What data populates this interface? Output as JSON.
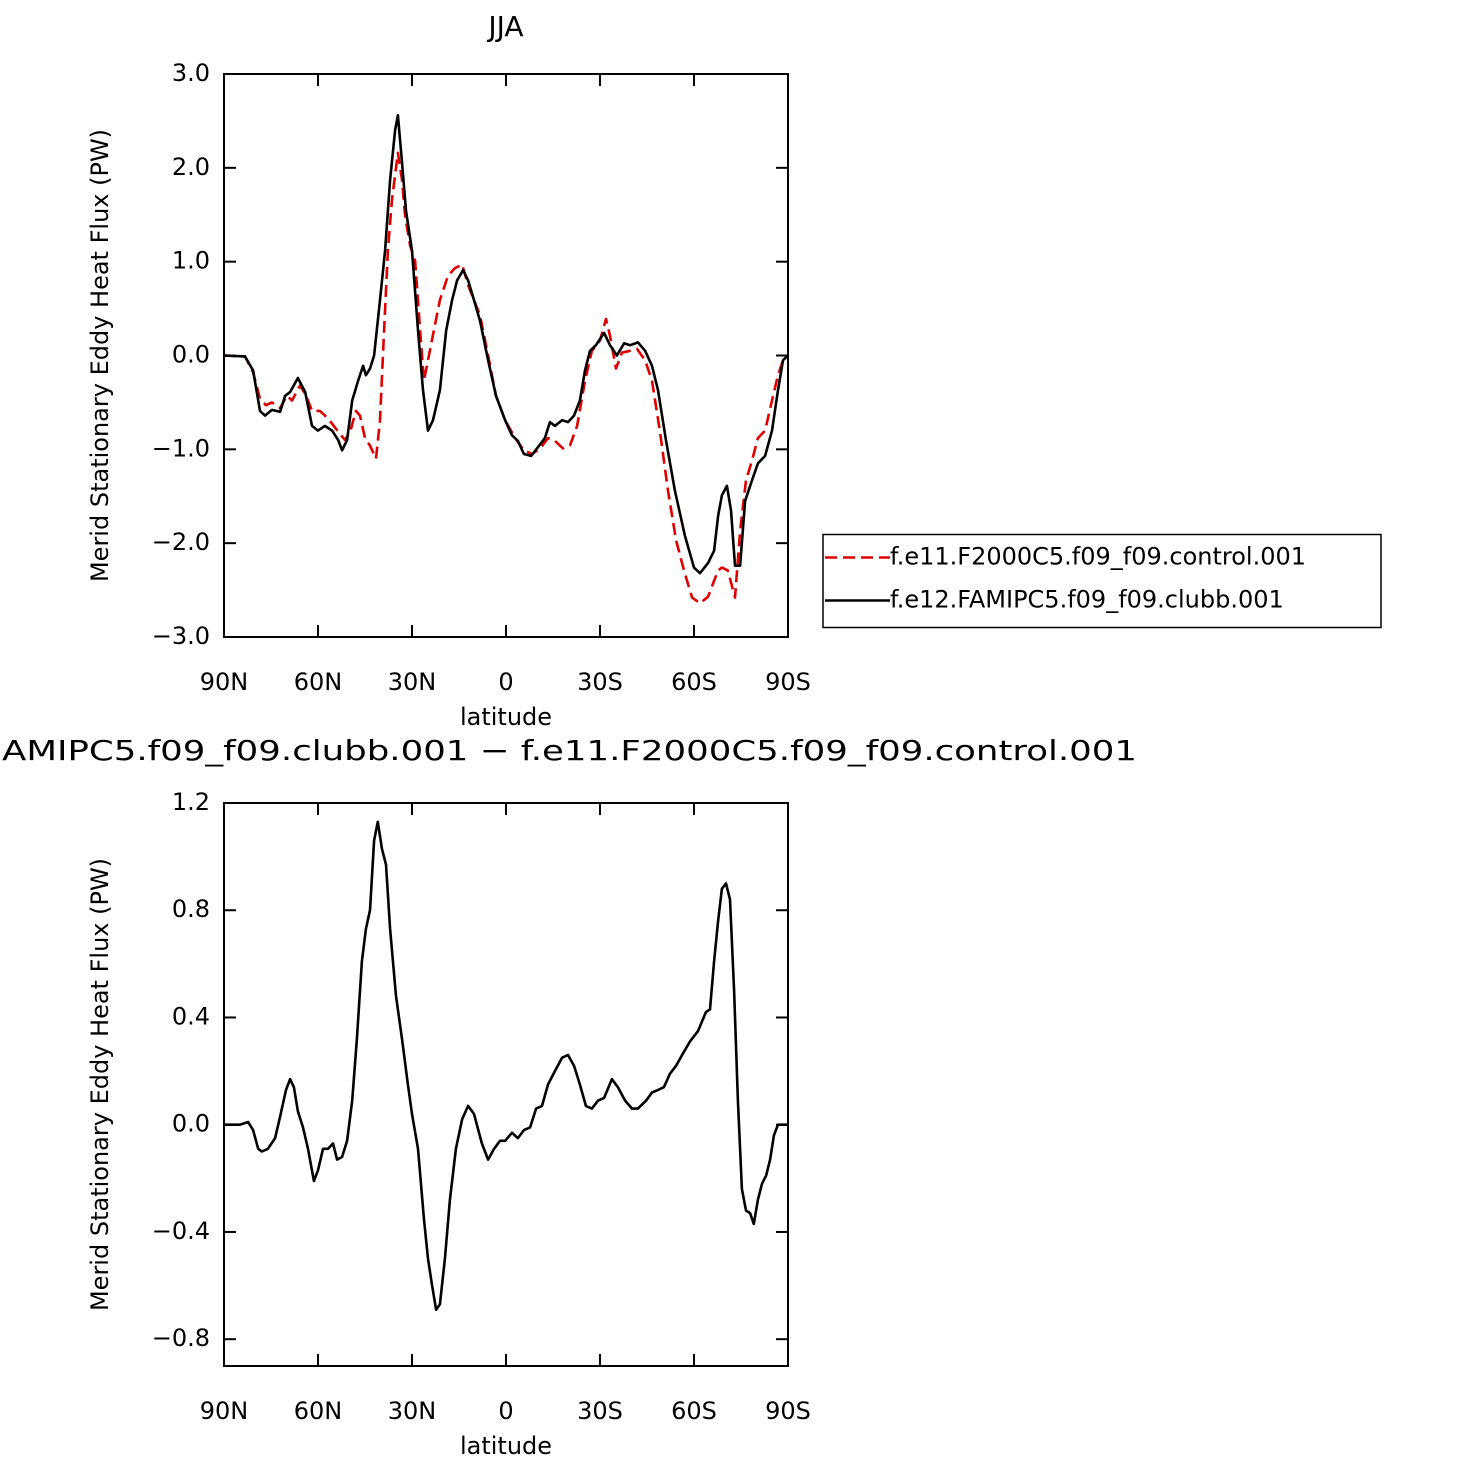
{
  "chart_data": [
    {
      "type": "line",
      "title": "JJA",
      "xlabel": "latitude",
      "ylabel": "Merid Stationary Eddy Heat Flux (PW)",
      "xlim": [
        90,
        -90
      ],
      "ylim": [
        -3,
        3
      ],
      "xticks": [
        {
          "value": 90,
          "label": "90N"
        },
        {
          "value": 60,
          "label": "60N"
        },
        {
          "value": 30,
          "label": "30N"
        },
        0,
        {
          "value": -30,
          "label": "30S"
        },
        {
          "value": -60,
          "label": "60S"
        },
        {
          "value": -90,
          "label": "90S"
        }
      ],
      "yticks": [
        {
          "value": -3,
          "label": "−3.0"
        },
        {
          "value": -2,
          "label": "−2.0"
        },
        {
          "value": -1,
          "label": "−1.0"
        },
        {
          "value": 0,
          "label": "0.0"
        },
        {
          "value": 1,
          "label": "1.0"
        },
        {
          "value": 2,
          "label": "2.0"
        },
        {
          "value": 3,
          "label": "3.0"
        }
      ],
      "legend": "right",
      "series": [
        {
          "name": "f.e11.F2000C5.f09_f09.control.001",
          "color": "#e00000",
          "dash": true,
          "x": [
            90,
            83.3,
            80.7,
            78.5,
            76.6,
            74.7,
            72.1,
            69.9,
            68.3,
            65.7,
            63.8,
            61.9,
            59.4,
            56.8,
            54.3,
            51.4,
            49.8,
            47.9,
            46.6,
            45.0,
            43.4,
            41.5,
            40.2,
            38.9,
            37.7,
            36.4,
            34.5,
            33.2,
            32.2,
            30.6,
            29.0,
            27.4,
            26.2,
            24.9,
            23.0,
            21.1,
            18.5,
            16.3,
            14.0,
            12.1,
            10.2,
            8.3,
            5.7,
            3.2,
            0.3,
            -2.9,
            -5.7,
            -8.3,
            -10.9,
            -13.4,
            -15.6,
            -18.2,
            -20.4,
            -22.7,
            -25.2,
            -27.4,
            -30.0,
            -31.9,
            -33.2,
            -35.1,
            -37.0,
            -39.6,
            -41.8,
            -44.4,
            -46.6,
            -49.1,
            -51.7,
            -54.3,
            -56.8,
            -59.4,
            -61.9,
            -64.5,
            -66.4,
            -67.7,
            -68.9,
            -70.8,
            -73.1,
            -74.7,
            -76.6,
            -78.5,
            -80.4,
            -82.7,
            -84.9,
            -86.8,
            -88.4,
            -90
          ],
          "values": [
            0,
            -0.01,
            -0.18,
            -0.46,
            -0.53,
            -0.5,
            -0.56,
            -0.43,
            -0.48,
            -0.32,
            -0.43,
            -0.59,
            -0.59,
            -0.67,
            -0.78,
            -0.9,
            -0.82,
            -0.59,
            -0.64,
            -0.88,
            -0.96,
            -1.1,
            -0.69,
            0.27,
            1.12,
            1.65,
            2.16,
            1.87,
            1.49,
            1.17,
            1.01,
            0.27,
            -0.27,
            -0.05,
            0.27,
            0.59,
            0.85,
            0.93,
            0.97,
            0.75,
            0.59,
            0.43,
            0,
            -0.43,
            -0.69,
            -0.88,
            -1.01,
            -1.05,
            -0.99,
            -0.88,
            -0.91,
            -0.99,
            -0.96,
            -0.75,
            -0.27,
            0.05,
            0.16,
            0.39,
            0.21,
            -0.14,
            0.03,
            0.05,
            0.07,
            -0.05,
            -0.27,
            -0.8,
            -1.44,
            -1.97,
            -2.29,
            -2.58,
            -2.64,
            -2.57,
            -2.4,
            -2.29,
            -2.26,
            -2.29,
            -2.58,
            -1.87,
            -1.33,
            -1.12,
            -0.88,
            -0.8,
            -0.48,
            -0.21,
            -0.05,
            0
          ]
        },
        {
          "name": "f.e12.FAMIPC5.f09_f09.clubb.001",
          "color": "#000000",
          "dash": false,
          "x": [
            90,
            83.3,
            80.7,
            78.5,
            76.9,
            74.7,
            72.1,
            70.5,
            68.9,
            66.4,
            64.1,
            61.9,
            60.0,
            57.8,
            55.5,
            53.6,
            52.3,
            50.7,
            49.1,
            47.2,
            45.6,
            44.7,
            43.4,
            42.1,
            40.2,
            38.6,
            37.0,
            35.4,
            34.5,
            33.2,
            31.9,
            30.0,
            28.1,
            26.5,
            24.9,
            23.3,
            21.1,
            19.1,
            17.2,
            15.6,
            13.7,
            12.1,
            10.2,
            8.3,
            5.7,
            3.2,
            0.3,
            -1.9,
            -3.8,
            -5.7,
            -8.0,
            -9.9,
            -12.4,
            -14.0,
            -15.6,
            -17.9,
            -19.8,
            -21.7,
            -23.6,
            -25.2,
            -26.8,
            -28.7,
            -31.3,
            -33.2,
            -35.4,
            -37.7,
            -39.6,
            -42.1,
            -44.4,
            -46.6,
            -48.5,
            -51.1,
            -53.9,
            -57.1,
            -60.0,
            -61.9,
            -64.5,
            -66.4,
            -67.7,
            -68.9,
            -70.5,
            -71.8,
            -73.1,
            -74.7,
            -76.3,
            -78.5,
            -80.4,
            -82.7,
            -84.9,
            -86.8,
            -88.4,
            -90
          ],
          "values": [
            0,
            -0.01,
            -0.16,
            -0.59,
            -0.64,
            -0.58,
            -0.6,
            -0.43,
            -0.39,
            -0.24,
            -0.39,
            -0.75,
            -0.8,
            -0.75,
            -0.8,
            -0.9,
            -1.01,
            -0.9,
            -0.48,
            -0.27,
            -0.11,
            -0.21,
            -0.14,
            0,
            0.59,
            1.12,
            1.87,
            2.4,
            2.56,
            2.06,
            1.54,
            1.12,
            0.27,
            -0.37,
            -0.8,
            -0.69,
            -0.37,
            0.27,
            0.59,
            0.8,
            0.91,
            0.8,
            0.59,
            0.37,
            -0.05,
            -0.43,
            -0.69,
            -0.85,
            -0.91,
            -1.05,
            -1.07,
            -0.99,
            -0.88,
            -0.71,
            -0.75,
            -0.69,
            -0.71,
            -0.64,
            -0.48,
            -0.16,
            0.05,
            0.11,
            0.24,
            0.11,
            0,
            0.13,
            0.11,
            0.14,
            0.05,
            -0.11,
            -0.37,
            -0.91,
            -1.44,
            -1.92,
            -2.26,
            -2.32,
            -2.21,
            -2.08,
            -1.71,
            -1.49,
            -1.39,
            -1.65,
            -2.24,
            -2.24,
            -1.55,
            -1.33,
            -1.15,
            -1.07,
            -0.8,
            -0.37,
            -0.05,
            0
          ]
        }
      ]
    },
    {
      "type": "line",
      "title": "AMIPC5.f09_f09.clubb.001 − f.e11.F2000C5.f09_f09.control.001",
      "xlabel": "latitude",
      "ylabel": "Merid Stationary Eddy Heat Flux (PW)",
      "xlim": [
        90,
        -90
      ],
      "ylim": [
        -0.9,
        1.2
      ],
      "xticks": [
        {
          "value": 90,
          "label": "90N"
        },
        {
          "value": 60,
          "label": "60N"
        },
        {
          "value": 30,
          "label": "30N"
        },
        0,
        {
          "value": -30,
          "label": "30S"
        },
        {
          "value": -60,
          "label": "60S"
        },
        {
          "value": -90,
          "label": "90S"
        }
      ],
      "yticks": [
        {
          "value": -0.8,
          "label": "−0.8"
        },
        {
          "value": -0.4,
          "label": "−0.4"
        },
        {
          "value": 0,
          "label": "0.0"
        },
        0.4,
        0.8,
        1.2
      ],
      "series": [
        {
          "color": "#000000",
          "dash": false,
          "x": [
            90,
            84.9,
            82.3,
            80.7,
            79.1,
            77.9,
            76.0,
            73.7,
            72.1,
            70.2,
            68.9,
            67.7,
            66.4,
            64.8,
            63.2,
            61.3,
            60.0,
            58.4,
            56.8,
            55.2,
            53.9,
            52.3,
            50.7,
            49.1,
            47.6,
            46.0,
            44.7,
            43.4,
            42.1,
            40.9,
            39.6,
            38.3,
            37.0,
            35.1,
            33.2,
            31.3,
            30.0,
            28.1,
            26.2,
            24.9,
            23.6,
            22.3,
            21.1,
            19.5,
            17.9,
            16.0,
            14.0,
            12.1,
            10.2,
            7.7,
            5.7,
            3.8,
            1.9,
            0.3,
            -1.9,
            -3.8,
            -5.7,
            -7.7,
            -9.6,
            -11.5,
            -13.4,
            -15.6,
            -17.9,
            -19.8,
            -21.7,
            -23.6,
            -25.5,
            -27.4,
            -29.4,
            -31.3,
            -33.8,
            -35.7,
            -38.0,
            -40.2,
            -42.1,
            -44.7,
            -46.6,
            -48.5,
            -50.4,
            -52.3,
            -54.3,
            -56.2,
            -58.7,
            -61.3,
            -63.8,
            -65.1,
            -66.4,
            -67.7,
            -68.9,
            -70.2,
            -71.5,
            -72.8,
            -74.0,
            -75.3,
            -76.6,
            -77.9,
            -79.1,
            -80.4,
            -81.7,
            -83.0,
            -84.3,
            -85.5,
            -86.8,
            -90
          ],
          "values": [
            0,
            0,
            0.01,
            -0.02,
            -0.09,
            -0.1,
            -0.09,
            -0.05,
            0.03,
            0.13,
            0.17,
            0.14,
            0.05,
            -0.01,
            -0.09,
            -0.21,
            -0.17,
            -0.09,
            -0.09,
            -0.07,
            -0.13,
            -0.12,
            -0.06,
            0.09,
            0.32,
            0.61,
            0.73,
            0.8,
            1.06,
            1.13,
            1.03,
            0.97,
            0.73,
            0.48,
            0.32,
            0.15,
            0.04,
            -0.09,
            -0.35,
            -0.5,
            -0.6,
            -0.69,
            -0.67,
            -0.5,
            -0.28,
            -0.09,
            0.02,
            0.07,
            0.04,
            -0.07,
            -0.13,
            -0.09,
            -0.06,
            -0.06,
            -0.03,
            -0.05,
            -0.02,
            -0.01,
            0.06,
            0.07,
            0.15,
            0.2,
            0.25,
            0.26,
            0.22,
            0.15,
            0.07,
            0.06,
            0.09,
            0.1,
            0.17,
            0.14,
            0.09,
            0.06,
            0.06,
            0.09,
            0.12,
            0.13,
            0.14,
            0.19,
            0.22,
            0.26,
            0.31,
            0.35,
            0.42,
            0.43,
            0.61,
            0.76,
            0.88,
            0.9,
            0.84,
            0.5,
            0.09,
            -0.24,
            -0.32,
            -0.33,
            -0.37,
            -0.28,
            -0.22,
            -0.19,
            -0.13,
            -0.04,
            0,
            0
          ]
        }
      ]
    }
  ]
}
